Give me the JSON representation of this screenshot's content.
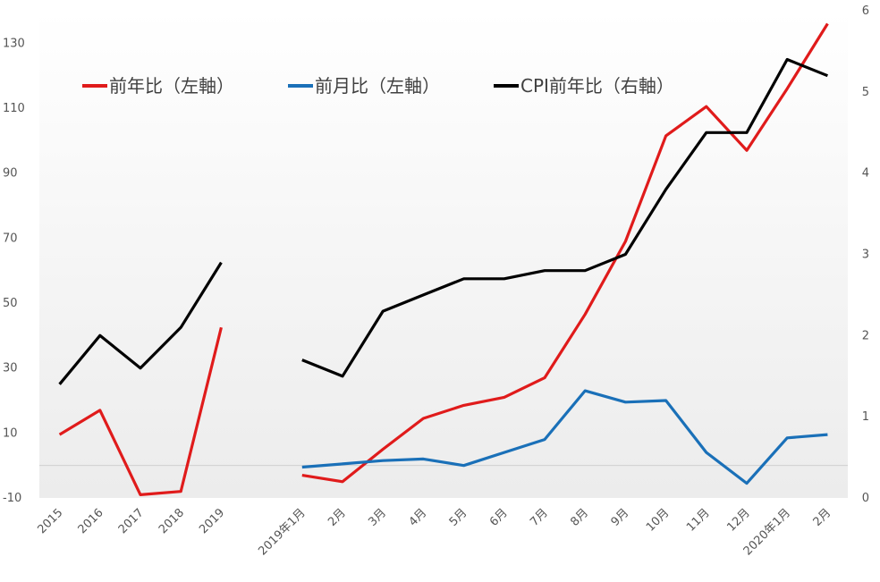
{
  "chart_data": {
    "type": "line",
    "categories": [
      "2015",
      "2016",
      "2017",
      "2018",
      "2019",
      "",
      "2019年1月",
      "2月",
      "3月",
      "4月",
      "5月",
      "6月",
      "7月",
      "8月",
      "9月",
      "10月",
      "11月",
      "12月",
      "2020年1月",
      "2月"
    ],
    "series": [
      {
        "name": "前年比（左軸）",
        "axis": "left",
        "color": "#e01b1b",
        "values": [
          9.5,
          17,
          -9,
          -8,
          42.5,
          null,
          -3,
          -5,
          5,
          14.5,
          18.5,
          21,
          27,
          46.5,
          69,
          101.5,
          110.5,
          97,
          116,
          136
        ]
      },
      {
        "name": "前月比（左軸）",
        "axis": "left",
        "color": "#1a70b8",
        "values": [
          null,
          null,
          null,
          null,
          null,
          null,
          -0.5,
          0.5,
          1.5,
          2,
          0,
          4,
          8,
          23,
          19.5,
          20,
          4,
          -5.5,
          8.5,
          9.5
        ]
      },
      {
        "name": "CPI前年比（右軸）",
        "axis": "right",
        "color": "#000000",
        "values": [
          1.4,
          2.0,
          1.6,
          2.1,
          2.9,
          null,
          1.7,
          1.5,
          2.3,
          2.5,
          2.7,
          2.7,
          2.8,
          2.8,
          3.0,
          3.8,
          4.5,
          4.5,
          5.4,
          5.2
        ]
      }
    ],
    "y_left": {
      "min": -10,
      "max": 140,
      "ticks": [
        "-10",
        "10",
        "30",
        "50",
        "70",
        "90",
        "110",
        "130"
      ]
    },
    "y_right": {
      "min": 0,
      "max": 6,
      "ticks": [
        "0",
        "1",
        "2",
        "3",
        "4",
        "5",
        "6"
      ]
    },
    "grid": false,
    "legend_position": "top-left"
  }
}
